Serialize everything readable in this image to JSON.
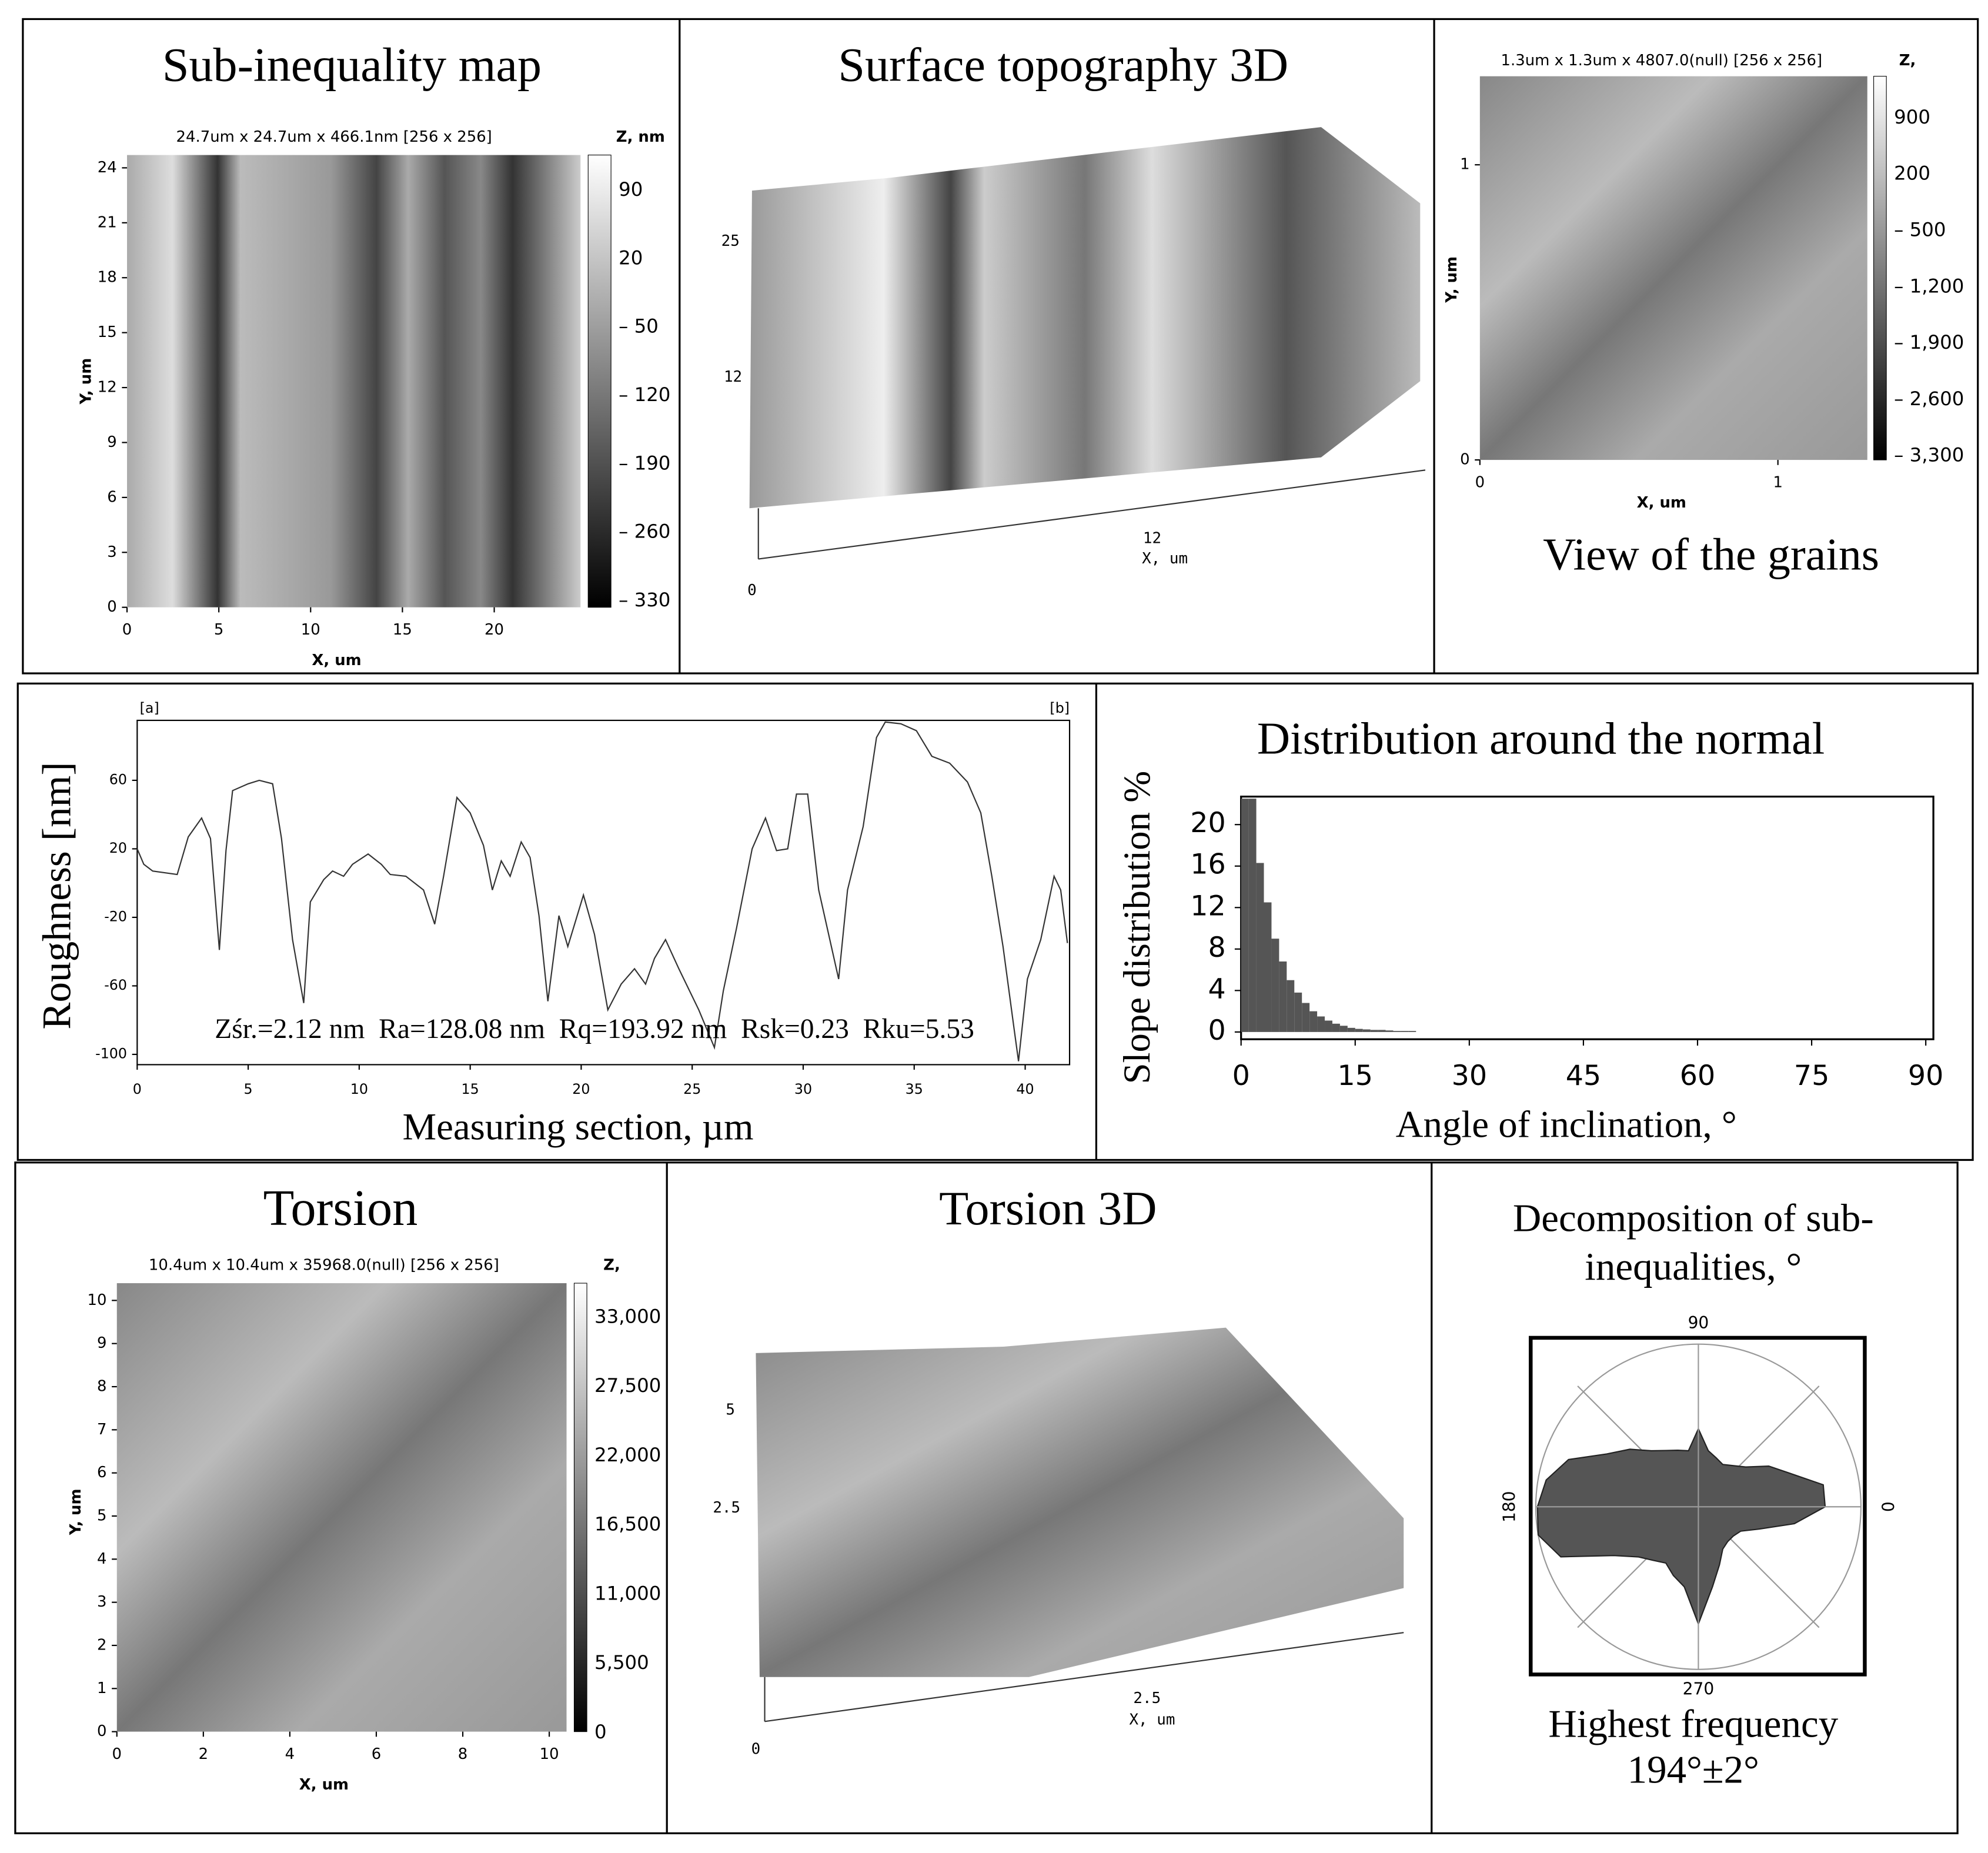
{
  "panels": {
    "sub_inequality_map": {
      "title": "Sub-inequality map",
      "header": "24.7um x 24.7um x 466.1nm [256 x 256]",
      "z_label": "Z, nm",
      "x_label": "X, um",
      "y_label": "Y, um",
      "xlim": [
        0,
        24.7
      ],
      "ylim": [
        0,
        24.7
      ],
      "xticks": [
        0,
        5,
        10,
        15,
        20
      ],
      "yticks": [
        0,
        3,
        6,
        9,
        12,
        15,
        18,
        21,
        24
      ],
      "colorbar_labels": [
        "90",
        "20",
        "– 50",
        "– 120",
        "– 190",
        "– 260",
        "– 330"
      ]
    },
    "surface_3d": {
      "title": "Surface topography 3D",
      "axis_labels": [
        "25",
        "12",
        "0",
        "12",
        "X, um"
      ]
    },
    "grains": {
      "title": "View of the grains",
      "header": "1.3um x 1.3um x 4807.0(null) [256 x 256]",
      "z_label": "Z,",
      "x_label": "X, um",
      "y_label": "Y, um",
      "xlim": [
        0,
        1.3
      ],
      "ylim": [
        0,
        1.3
      ],
      "xticks": [
        0,
        1
      ],
      "yticks": [
        0,
        1
      ],
      "colorbar_labels": [
        "900",
        "200",
        "– 500",
        "– 1,200",
        "– 1,900",
        "– 2,600",
        "– 3,300"
      ]
    },
    "torsion": {
      "title": "Torsion",
      "header": "10.4um x 10.4um x 35968.0(null) [256 x 256]",
      "z_label": "Z,",
      "x_label": "X, um",
      "y_label": "Y, um",
      "xlim": [
        0,
        10.4
      ],
      "ylim": [
        0,
        10.4
      ],
      "xticks": [
        0,
        2,
        4,
        6,
        8,
        10
      ],
      "yticks": [
        0,
        1,
        2,
        3,
        4,
        5,
        6,
        7,
        8,
        9,
        10
      ],
      "colorbar_labels": [
        "33,000",
        "27,500",
        "22,000",
        "16,500",
        "11,000",
        "5,500",
        "0"
      ]
    },
    "torsion_3d": {
      "title": "Torsion 3D",
      "axis_labels": [
        "5",
        "2.5",
        "0",
        "2.5",
        "X, um"
      ]
    }
  },
  "chart_data": [
    {
      "type": "line",
      "y_label": "Roughness [nm]",
      "x_label": "Measuring section, µm",
      "corner_labels": [
        "[a]",
        "[b]"
      ],
      "annotation": "Zśr.=2.12 nm  Ra=128.08 nm  Rq=193.92 nm  Rsk=0.23  Rku=5.53",
      "x": [
        0,
        0.3,
        0.7,
        1.8,
        2.3,
        2.9,
        3.3,
        3.7,
        4.0,
        4.3,
        5.0,
        5.5,
        6.1,
        6.5,
        7.0,
        7.5,
        7.8,
        8.4,
        8.8,
        9.3,
        9.7,
        10.4,
        11.0,
        11.4,
        12.1,
        12.9,
        13.4,
        13.8,
        14.4,
        15.0,
        15.6,
        16.0,
        16.4,
        16.8,
        17.3,
        17.7,
        18.1,
        18.5,
        19.0,
        19.4,
        20.1,
        20.6,
        21.2,
        21.8,
        22.4,
        22.9,
        23.3,
        23.8,
        24.4,
        25.3,
        26.0,
        26.4,
        27.0,
        27.7,
        28.3,
        28.8,
        29.3,
        29.7,
        30.2,
        30.7,
        31.6,
        32.0,
        32.7,
        33.3,
        33.7,
        34.4,
        35.1,
        35.8,
        36.6,
        37.4,
        38.0,
        38.5,
        39.0,
        39.5,
        39.7,
        40.1,
        40.7,
        41.3,
        41.6,
        41.9
      ],
      "values": [
        20,
        11,
        7,
        5,
        27,
        38,
        26,
        -39,
        19,
        54,
        58,
        60,
        58,
        26,
        -33,
        -70,
        -11,
        2,
        7,
        4,
        11,
        17,
        11,
        5,
        4,
        -4,
        -24,
        4,
        50,
        41,
        22,
        -4,
        13,
        4,
        24,
        15,
        -19,
        -69,
        -19,
        -37,
        -7,
        -30,
        -74,
        -59,
        -50,
        -59,
        -44,
        -33,
        -50,
        -74,
        -96,
        -63,
        -26,
        20,
        38,
        19,
        20,
        52,
        52,
        -4,
        -56,
        -4,
        33,
        85,
        94,
        93,
        89,
        74,
        70,
        59,
        41,
        4,
        -37,
        -85,
        -104,
        -56,
        -33,
        4,
        -4,
        -35
      ],
      "color": "#333333",
      "xlim": [
        0,
        42
      ],
      "ylim": [
        -106,
        95
      ],
      "xticks": [
        0,
        5,
        10,
        15,
        20,
        25,
        30,
        35,
        40
      ],
      "yticks": [
        -100,
        -60,
        -20,
        20,
        60
      ]
    },
    {
      "type": "histogram",
      "title": "Distribution around the normal",
      "y_label": "Slope distribution %",
      "x_label": "Angle of inclination, °",
      "bins": [
        0,
        1,
        2,
        3,
        4,
        5,
        6,
        7,
        8,
        9,
        10,
        11,
        12,
        13,
        14,
        15,
        16,
        17,
        18,
        19,
        20,
        21,
        22,
        23
      ],
      "values": [
        22.5,
        22.5,
        16.3,
        12.5,
        9,
        6.8,
        5,
        3.8,
        2.8,
        2,
        1.5,
        1.1,
        0.8,
        0.6,
        0.4,
        0.3,
        0.25,
        0.2,
        0.2,
        0.15,
        0.1,
        0.1,
        0.1
      ],
      "color": "#555555",
      "xlim": [
        0,
        91
      ],
      "ylim": [
        -0.7,
        22.7
      ],
      "xticks": [
        0,
        15,
        30,
        45,
        60,
        75,
        90
      ],
      "yticks": [
        0,
        4,
        8,
        12,
        16,
        20
      ]
    },
    {
      "type": "polar",
      "title_lines": [
        "Decomposition of sub-",
        "inequalities, °"
      ],
      "annotation_lines": [
        "Highest frequency",
        "194°±2°"
      ],
      "theta": [
        0,
        10,
        20,
        30,
        40,
        50,
        60,
        70,
        80,
        90,
        100,
        110,
        120,
        130,
        140,
        150,
        160,
        170,
        180,
        190,
        200,
        210,
        220,
        230,
        240,
        250,
        260,
        270,
        280,
        290,
        300,
        310,
        320,
        330,
        340,
        350
      ],
      "values": [
        0.78,
        0.78,
        0.6,
        0.5,
        0.38,
        0.33,
        0.3,
        0.32,
        0.35,
        0.48,
        0.35,
        0.37,
        0.4,
        0.45,
        0.55,
        0.65,
        0.85,
        0.95,
        0.99,
        1.0,
        0.9,
        0.6,
        0.48,
        0.43,
        0.4,
        0.45,
        0.5,
        0.72,
        0.5,
        0.38,
        0.3,
        0.28,
        0.28,
        0.3,
        0.4,
        0.6
      ],
      "color": "#555555",
      "rlim": [
        0,
        1
      ],
      "thetaticks": [
        0,
        90,
        180,
        270
      ]
    }
  ]
}
